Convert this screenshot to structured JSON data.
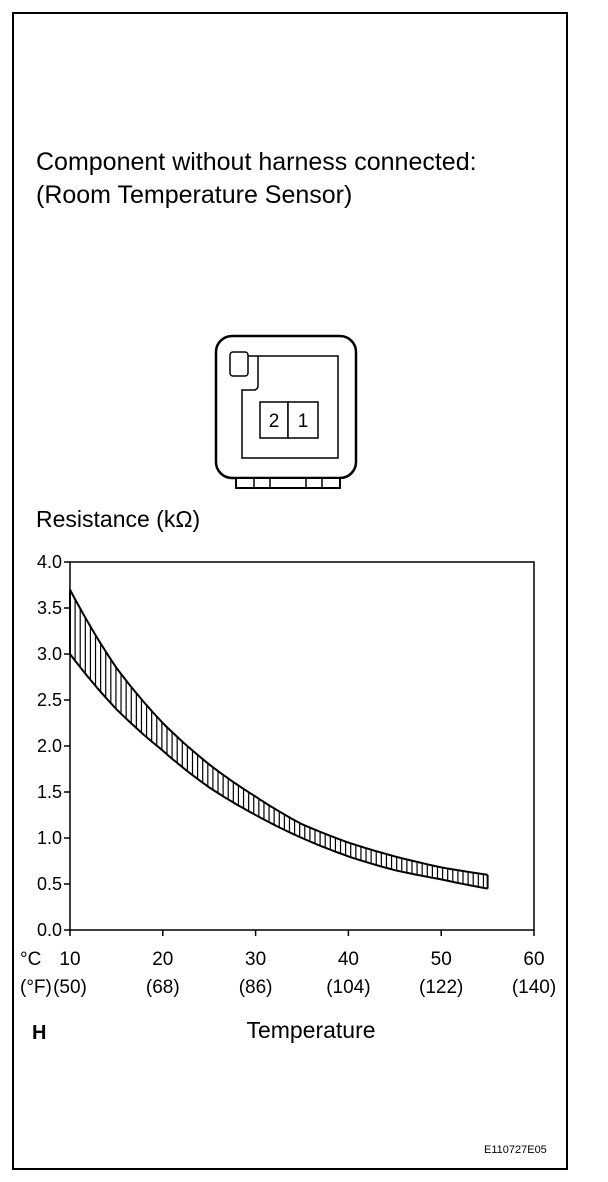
{
  "heading": {
    "line1": "Component without harness connected:",
    "line2": "(Room Temperature Sensor)"
  },
  "connector": {
    "terminals": [
      "2",
      "1"
    ]
  },
  "chart_data": {
    "type": "area",
    "title": "",
    "ylabel": "Resistance (kΩ)",
    "xlabel": "Temperature",
    "x_unit_c": "°C",
    "x_unit_f": "(°F)",
    "xlim": [
      10,
      60
    ],
    "ylim": [
      0.0,
      4.0
    ],
    "x_ticks": [
      10,
      20,
      30,
      40,
      50,
      60
    ],
    "x_tick_labels_c": [
      "10",
      "20",
      "30",
      "40",
      "50",
      "60"
    ],
    "x_tick_labels_f": [
      "(50)",
      "(68)",
      "(86)",
      "(104)",
      "(122)",
      "(140)"
    ],
    "y_ticks": [
      0.0,
      0.5,
      1.0,
      1.5,
      2.0,
      2.5,
      3.0,
      3.5,
      4.0
    ],
    "y_tick_labels": [
      "0.0",
      "0.5",
      "1.0",
      "1.5",
      "2.0",
      "2.5",
      "3.0",
      "3.5",
      "4.0"
    ],
    "grid": false,
    "series": [
      {
        "x": [
          10,
          15,
          20,
          25,
          30,
          35,
          40,
          45,
          50,
          55
        ],
        "values": [
          3.7,
          2.85,
          2.25,
          1.8,
          1.45,
          1.15,
          0.95,
          0.8,
          0.68,
          0.6
        ]
      },
      {
        "x": [
          10,
          15,
          20,
          25,
          30,
          35,
          40,
          45,
          50,
          55
        ],
        "values": [
          3.0,
          2.4,
          1.95,
          1.55,
          1.25,
          1.0,
          0.8,
          0.65,
          0.55,
          0.45
        ]
      }
    ]
  },
  "footer": {
    "marker": "H",
    "code": "E110727E05"
  }
}
